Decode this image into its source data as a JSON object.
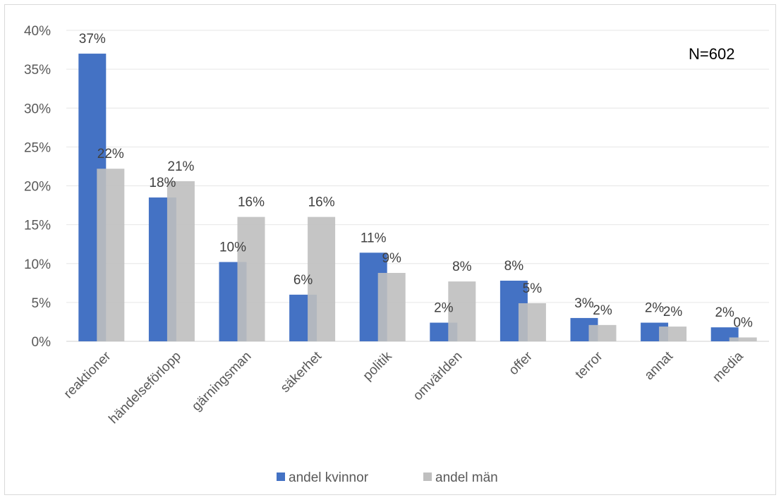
{
  "chart_data": {
    "type": "bar",
    "categories": [
      "reaktioner",
      "händelseförlopp",
      "gärningsman",
      "säkerhet",
      "politik",
      "omvärlden",
      "offer",
      "terror",
      "annat",
      "media"
    ],
    "series": [
      {
        "name": "andel kvinnor",
        "color": "#4472c4",
        "values": [
          37,
          18.5,
          10.2,
          6,
          11.4,
          2.4,
          7.8,
          3,
          2.4,
          1.8
        ],
        "labels": [
          "37%",
          "18%",
          "10%",
          "6%",
          "11%",
          "2%",
          "8%",
          "3%",
          "2%",
          "2%"
        ]
      },
      {
        "name": "andel män",
        "color": "#bfbfbf",
        "values": [
          22.2,
          20.6,
          16,
          16,
          8.8,
          7.7,
          4.9,
          2.1,
          1.9,
          0.5
        ],
        "labels": [
          "22%",
          "21%",
          "16%",
          "16%",
          "9%",
          "8%",
          "5%",
          "2%",
          "2%",
          "0%"
        ]
      }
    ],
    "ylim": [
      0,
      40
    ],
    "yticks": [
      0,
      5,
      10,
      15,
      20,
      25,
      30,
      35,
      40
    ],
    "ytick_labels": [
      "0%",
      "5%",
      "10%",
      "15%",
      "20%",
      "25%",
      "30%",
      "35%",
      "40%"
    ],
    "annotation": "N=602",
    "grid": true,
    "legend_position": "bottom",
    "title": "",
    "xlabel": "",
    "ylabel": ""
  }
}
